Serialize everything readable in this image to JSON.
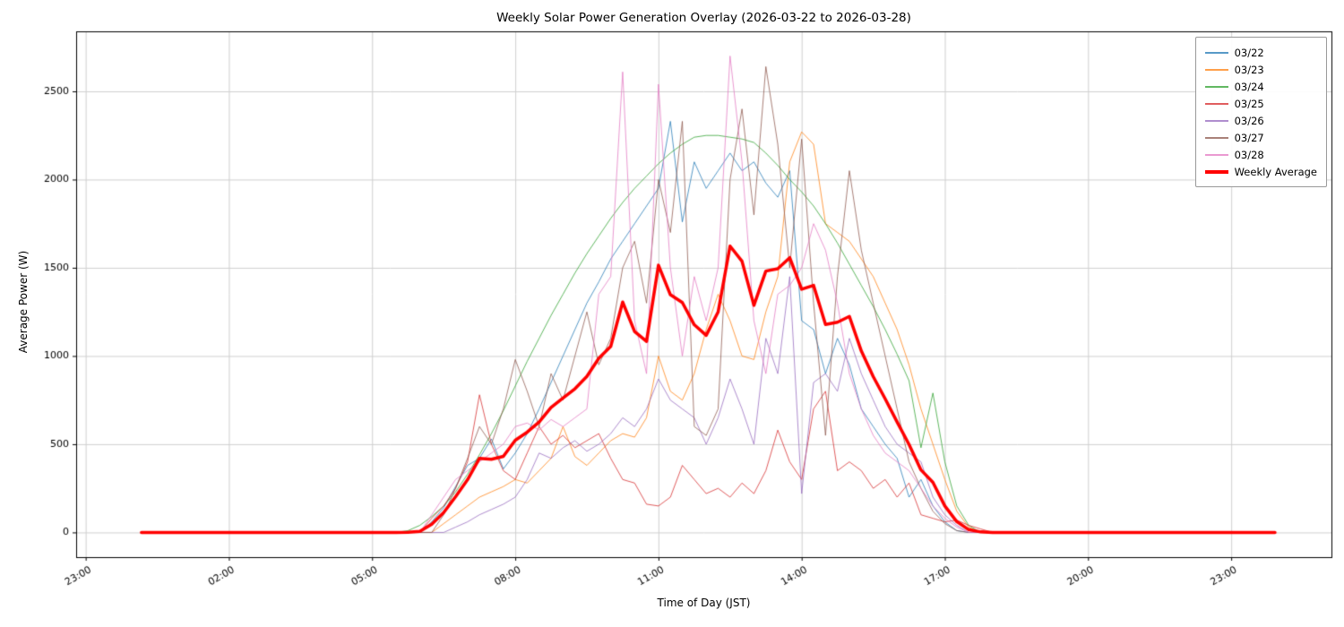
{
  "chart_data": {
    "type": "line",
    "title": "Weekly Solar Power Generation Overlay (2026-03-22 to 2026-03-28)",
    "xlabel": "Time of Day (JST)",
    "ylabel": "Average Power (W)",
    "grid": true,
    "legend_position": "upper right",
    "xlim": [
      -1.2,
      25.1
    ],
    "ylim": [
      -140,
      2840
    ],
    "xticks": [
      {
        "hour": -1,
        "label": "23:00"
      },
      {
        "hour": 2,
        "label": "02:00"
      },
      {
        "hour": 5,
        "label": "05:00"
      },
      {
        "hour": 8,
        "label": "08:00"
      },
      {
        "hour": 11,
        "label": "11:00"
      },
      {
        "hour": 14,
        "label": "14:00"
      },
      {
        "hour": 17,
        "label": "17:00"
      },
      {
        "hour": 20,
        "label": "20:00"
      },
      {
        "hour": 23,
        "label": "23:00"
      }
    ],
    "yticks": [
      0,
      500,
      1000,
      1500,
      2000,
      2500
    ],
    "x_hours": [
      0.167,
      5.0,
      5.25,
      5.5,
      5.75,
      6.0,
      6.25,
      6.5,
      6.75,
      7.0,
      7.25,
      7.5,
      7.75,
      8.0,
      8.25,
      8.5,
      8.75,
      9.0,
      9.25,
      9.5,
      9.75,
      10.0,
      10.25,
      10.5,
      10.75,
      11.0,
      11.25,
      11.5,
      11.75,
      12.0,
      12.25,
      12.5,
      12.75,
      13.0,
      13.25,
      13.5,
      13.75,
      14.0,
      14.25,
      14.5,
      14.75,
      15.0,
      15.25,
      15.5,
      15.75,
      16.0,
      16.25,
      16.5,
      16.75,
      17.0,
      17.25,
      17.5,
      17.75,
      18.0,
      18.25,
      18.5,
      18.75,
      19.0,
      23.917
    ],
    "series": [
      {
        "name": "03/22",
        "color": "#1f77b4",
        "values": [
          0,
          0,
          0,
          0,
          0,
          0,
          60,
          140,
          260,
          380,
          420,
          530,
          360,
          450,
          560,
          700,
          850,
          1000,
          1150,
          1300,
          1420,
          1550,
          1650,
          1750,
          1850,
          1950,
          2330,
          1760,
          2100,
          1950,
          2050,
          2150,
          2050,
          2100,
          1980,
          1900,
          2050,
          1200,
          1150,
          900,
          1100,
          950,
          700,
          600,
          500,
          420,
          200,
          300,
          150,
          60,
          10,
          0,
          0,
          0,
          0,
          0,
          0,
          0,
          0
        ]
      },
      {
        "name": "03/23",
        "color": "#ff7f0e",
        "values": [
          0,
          0,
          0,
          0,
          0,
          0,
          0,
          50,
          100,
          150,
          200,
          230,
          260,
          300,
          280,
          350,
          420,
          600,
          430,
          380,
          450,
          520,
          560,
          540,
          650,
          1000,
          800,
          750,
          900,
          1150,
          1350,
          1200,
          1000,
          980,
          1250,
          1450,
          2100,
          2270,
          2200,
          1750,
          1700,
          1650,
          1550,
          1450,
          1300,
          1150,
          950,
          700,
          500,
          300,
          120,
          30,
          0,
          0,
          0,
          0,
          0,
          0,
          0
        ]
      },
      {
        "name": "03/24",
        "color": "#2ca02c",
        "values": [
          0,
          0,
          0,
          0,
          10,
          40,
          90,
          150,
          230,
          330,
          440,
          560,
          690,
          830,
          970,
          1100,
          1230,
          1350,
          1470,
          1580,
          1680,
          1780,
          1870,
          1950,
          2020,
          2090,
          2150,
          2200,
          2240,
          2250,
          2250,
          2240,
          2230,
          2210,
          2150,
          2080,
          2000,
          1930,
          1850,
          1750,
          1640,
          1520,
          1400,
          1280,
          1150,
          1010,
          860,
          480,
          790,
          400,
          150,
          40,
          0,
          0,
          0,
          0,
          0,
          0,
          0
        ]
      },
      {
        "name": "03/25",
        "color": "#d62728",
        "values": [
          0,
          0,
          0,
          0,
          0,
          0,
          80,
          150,
          250,
          400,
          780,
          500,
          350,
          300,
          450,
          600,
          500,
          550,
          480,
          520,
          560,
          420,
          300,
          280,
          160,
          150,
          200,
          380,
          300,
          220,
          250,
          200,
          280,
          220,
          350,
          580,
          400,
          300,
          700,
          800,
          350,
          400,
          350,
          250,
          300,
          200,
          280,
          100,
          80,
          60,
          70,
          40,
          20,
          0,
          0,
          0,
          0,
          0,
          0
        ]
      },
      {
        "name": "03/26",
        "color": "#9467bd",
        "values": [
          0,
          0,
          0,
          0,
          0,
          0,
          0,
          0,
          30,
          60,
          100,
          130,
          160,
          200,
          300,
          450,
          420,
          480,
          520,
          460,
          500,
          560,
          650,
          600,
          700,
          870,
          750,
          700,
          650,
          500,
          650,
          870,
          700,
          500,
          1100,
          900,
          1450,
          220,
          850,
          900,
          800,
          1100,
          900,
          750,
          600,
          500,
          450,
          400,
          200,
          100,
          40,
          0,
          0,
          0,
          0,
          0,
          0,
          0,
          0
        ]
      },
      {
        "name": "03/27",
        "color": "#8c564b",
        "values": [
          0,
          0,
          0,
          0,
          0,
          0,
          0,
          100,
          250,
          420,
          600,
          500,
          700,
          980,
          800,
          600,
          900,
          750,
          1000,
          1250,
          950,
          1100,
          1500,
          1650,
          1300,
          2000,
          1700,
          2330,
          600,
          550,
          700,
          2000,
          2400,
          1800,
          2640,
          2200,
          1500,
          2230,
          1300,
          550,
          1450,
          2050,
          1600,
          1300,
          1000,
          700,
          400,
          250,
          120,
          50,
          10,
          0,
          0,
          0,
          0,
          0,
          0,
          0,
          0
        ]
      },
      {
        "name": "03/28",
        "color": "#e377c2",
        "values": [
          0,
          0,
          0,
          0,
          0,
          0,
          100,
          200,
          300,
          350,
          400,
          450,
          500,
          600,
          620,
          580,
          640,
          600,
          650,
          700,
          1350,
          1450,
          2610,
          1200,
          900,
          2540,
          1500,
          1000,
          1450,
          1200,
          1500,
          2700,
          2100,
          1200,
          900,
          1350,
          1400,
          1500,
          1750,
          1600,
          1300,
          900,
          700,
          550,
          450,
          400,
          350,
          250,
          150,
          80,
          30,
          0,
          0,
          0,
          0,
          0,
          0,
          0,
          0
        ]
      }
    ],
    "average": {
      "name": "Weekly Average",
      "color": "#ff0000",
      "derived": "mean_of_day_series"
    },
    "style": {
      "day_line_width": 1,
      "day_line_alpha": 0.75,
      "average_line_width": 3.5,
      "grid_color": "#d0d0d0",
      "spine_color": "#000000",
      "background": "#ffffff"
    }
  }
}
